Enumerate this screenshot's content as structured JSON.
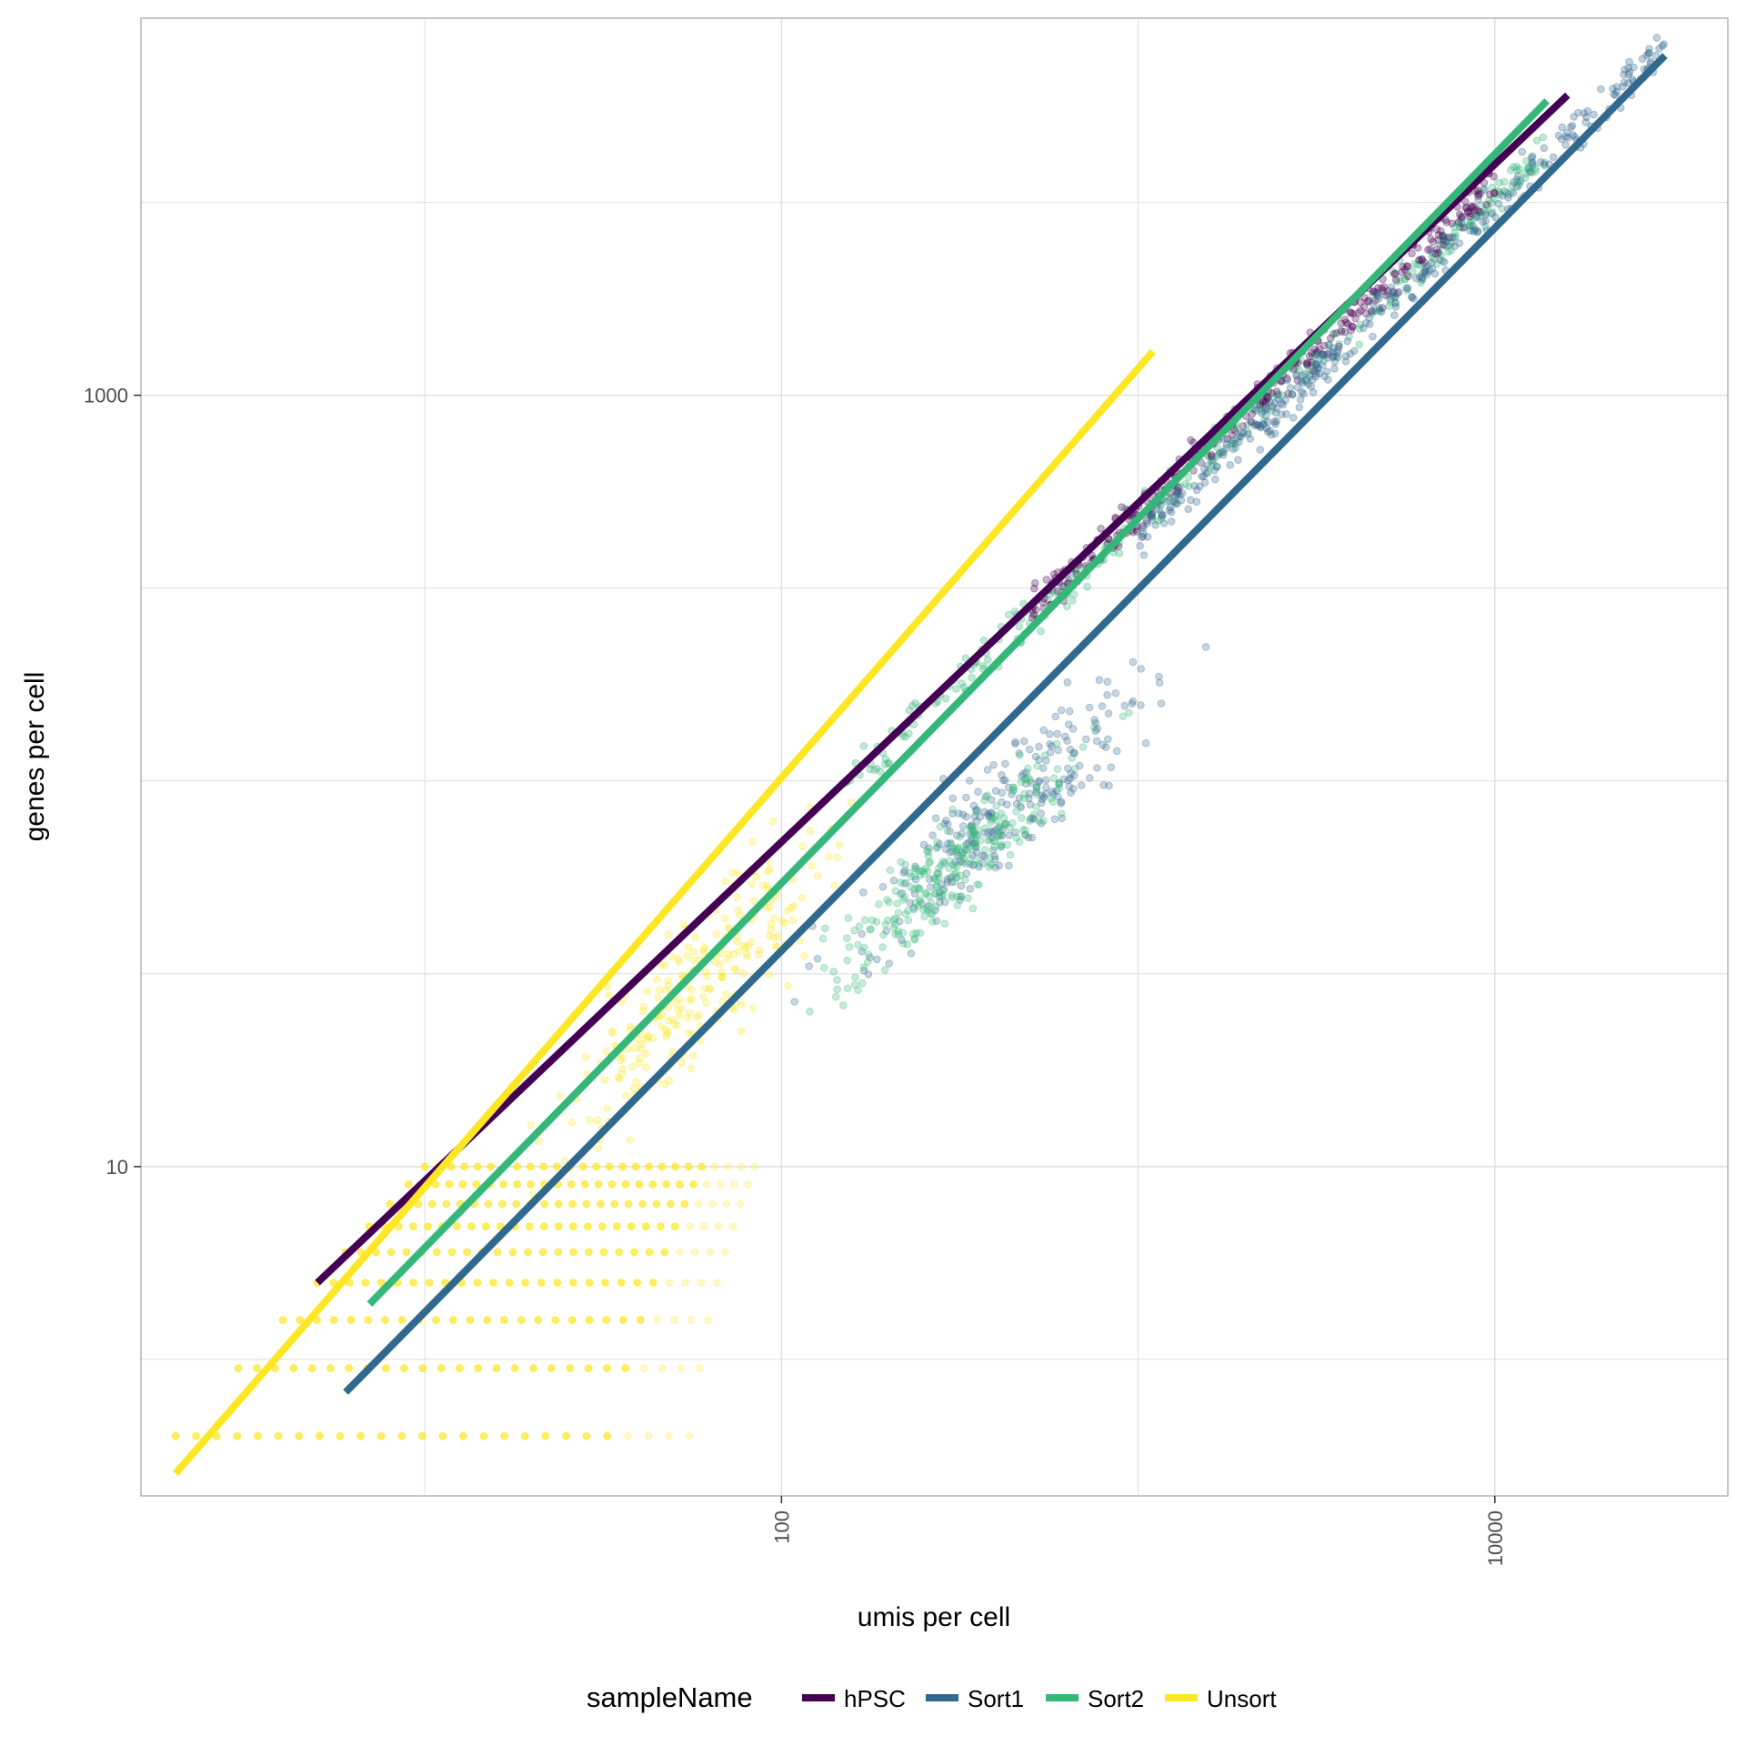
{
  "chart_data": {
    "type": "scatter",
    "xlabel": "umis per cell",
    "ylabel": "genes per cell",
    "x_scale": "log10",
    "y_scale": "log10",
    "xlim": [
      1.6,
      45000
    ],
    "ylim": [
      1.4,
      9500
    ],
    "x_ticks": [
      {
        "value": 100,
        "label": "100"
      },
      {
        "value": 10000,
        "label": "10000"
      }
    ],
    "y_ticks": [
      {
        "value": 10,
        "label": "10"
      },
      {
        "value": 1000,
        "label": "1000"
      }
    ],
    "grid": true,
    "legend": {
      "title": "sampleName",
      "position": "bottom",
      "entries": [
        {
          "name": "hPSC",
          "color": "#440154"
        },
        {
          "name": "Sort1",
          "color": "#31688E"
        },
        {
          "name": "Sort2",
          "color": "#35B779"
        },
        {
          "name": "Unsort",
          "color": "#FDE725"
        }
      ]
    },
    "series": [
      {
        "name": "hPSC",
        "color": "#440154",
        "fit_line": {
          "x": [
            5,
            16000
          ],
          "y": [
            5,
            6000
          ]
        }
      },
      {
        "name": "Sort1",
        "color": "#31688E",
        "fit_line": {
          "x": [
            6,
            30000
          ],
          "y": [
            2.6,
            7600
          ]
        }
      },
      {
        "name": "Sort2",
        "color": "#35B779",
        "fit_line": {
          "x": [
            7,
            14000
          ],
          "y": [
            4.4,
            5800
          ]
        }
      },
      {
        "name": "Unsort",
        "color": "#FDE725",
        "fit_line": {
          "x": [
            2,
            1100
          ],
          "y": [
            1.6,
            1300
          ]
        }
      }
    ],
    "scatter_clouds": [
      {
        "series": "Unsort",
        "kind": "integer-rows",
        "x_range": [
          2,
          60
        ],
        "y_values": [
          2,
          3,
          4,
          5,
          6,
          7,
          8,
          9,
          10
        ]
      },
      {
        "series": "Unsort",
        "kind": "cloud",
        "x_center": 60,
        "y_center": 30,
        "x_spread_log10": 0.35,
        "y_spread_log10": 0.3,
        "slope": 0.95
      },
      {
        "series": "Sort2",
        "kind": "band",
        "x_range": [
          150,
          14000
        ],
        "slope": 0.84,
        "y_at_1000": 470
      },
      {
        "series": "hPSC",
        "kind": "band",
        "x_range": [
          500,
          10000
        ],
        "slope": 0.85,
        "y_at_1000": 500
      },
      {
        "series": "Sort1",
        "kind": "band",
        "x_range": [
          1000,
          30000
        ],
        "slope": 0.86,
        "y_at_1000": 430
      },
      {
        "series": "Sort1",
        "kind": "cloud",
        "x_center": 400,
        "y_center": 80,
        "x_spread_log10": 0.4,
        "y_spread_log10": 0.25,
        "slope": 0.8
      },
      {
        "series": "Sort2",
        "kind": "cloud",
        "x_center": 300,
        "y_center": 60,
        "x_spread_log10": 0.35,
        "y_spread_log10": 0.2,
        "slope": 0.8
      }
    ]
  }
}
